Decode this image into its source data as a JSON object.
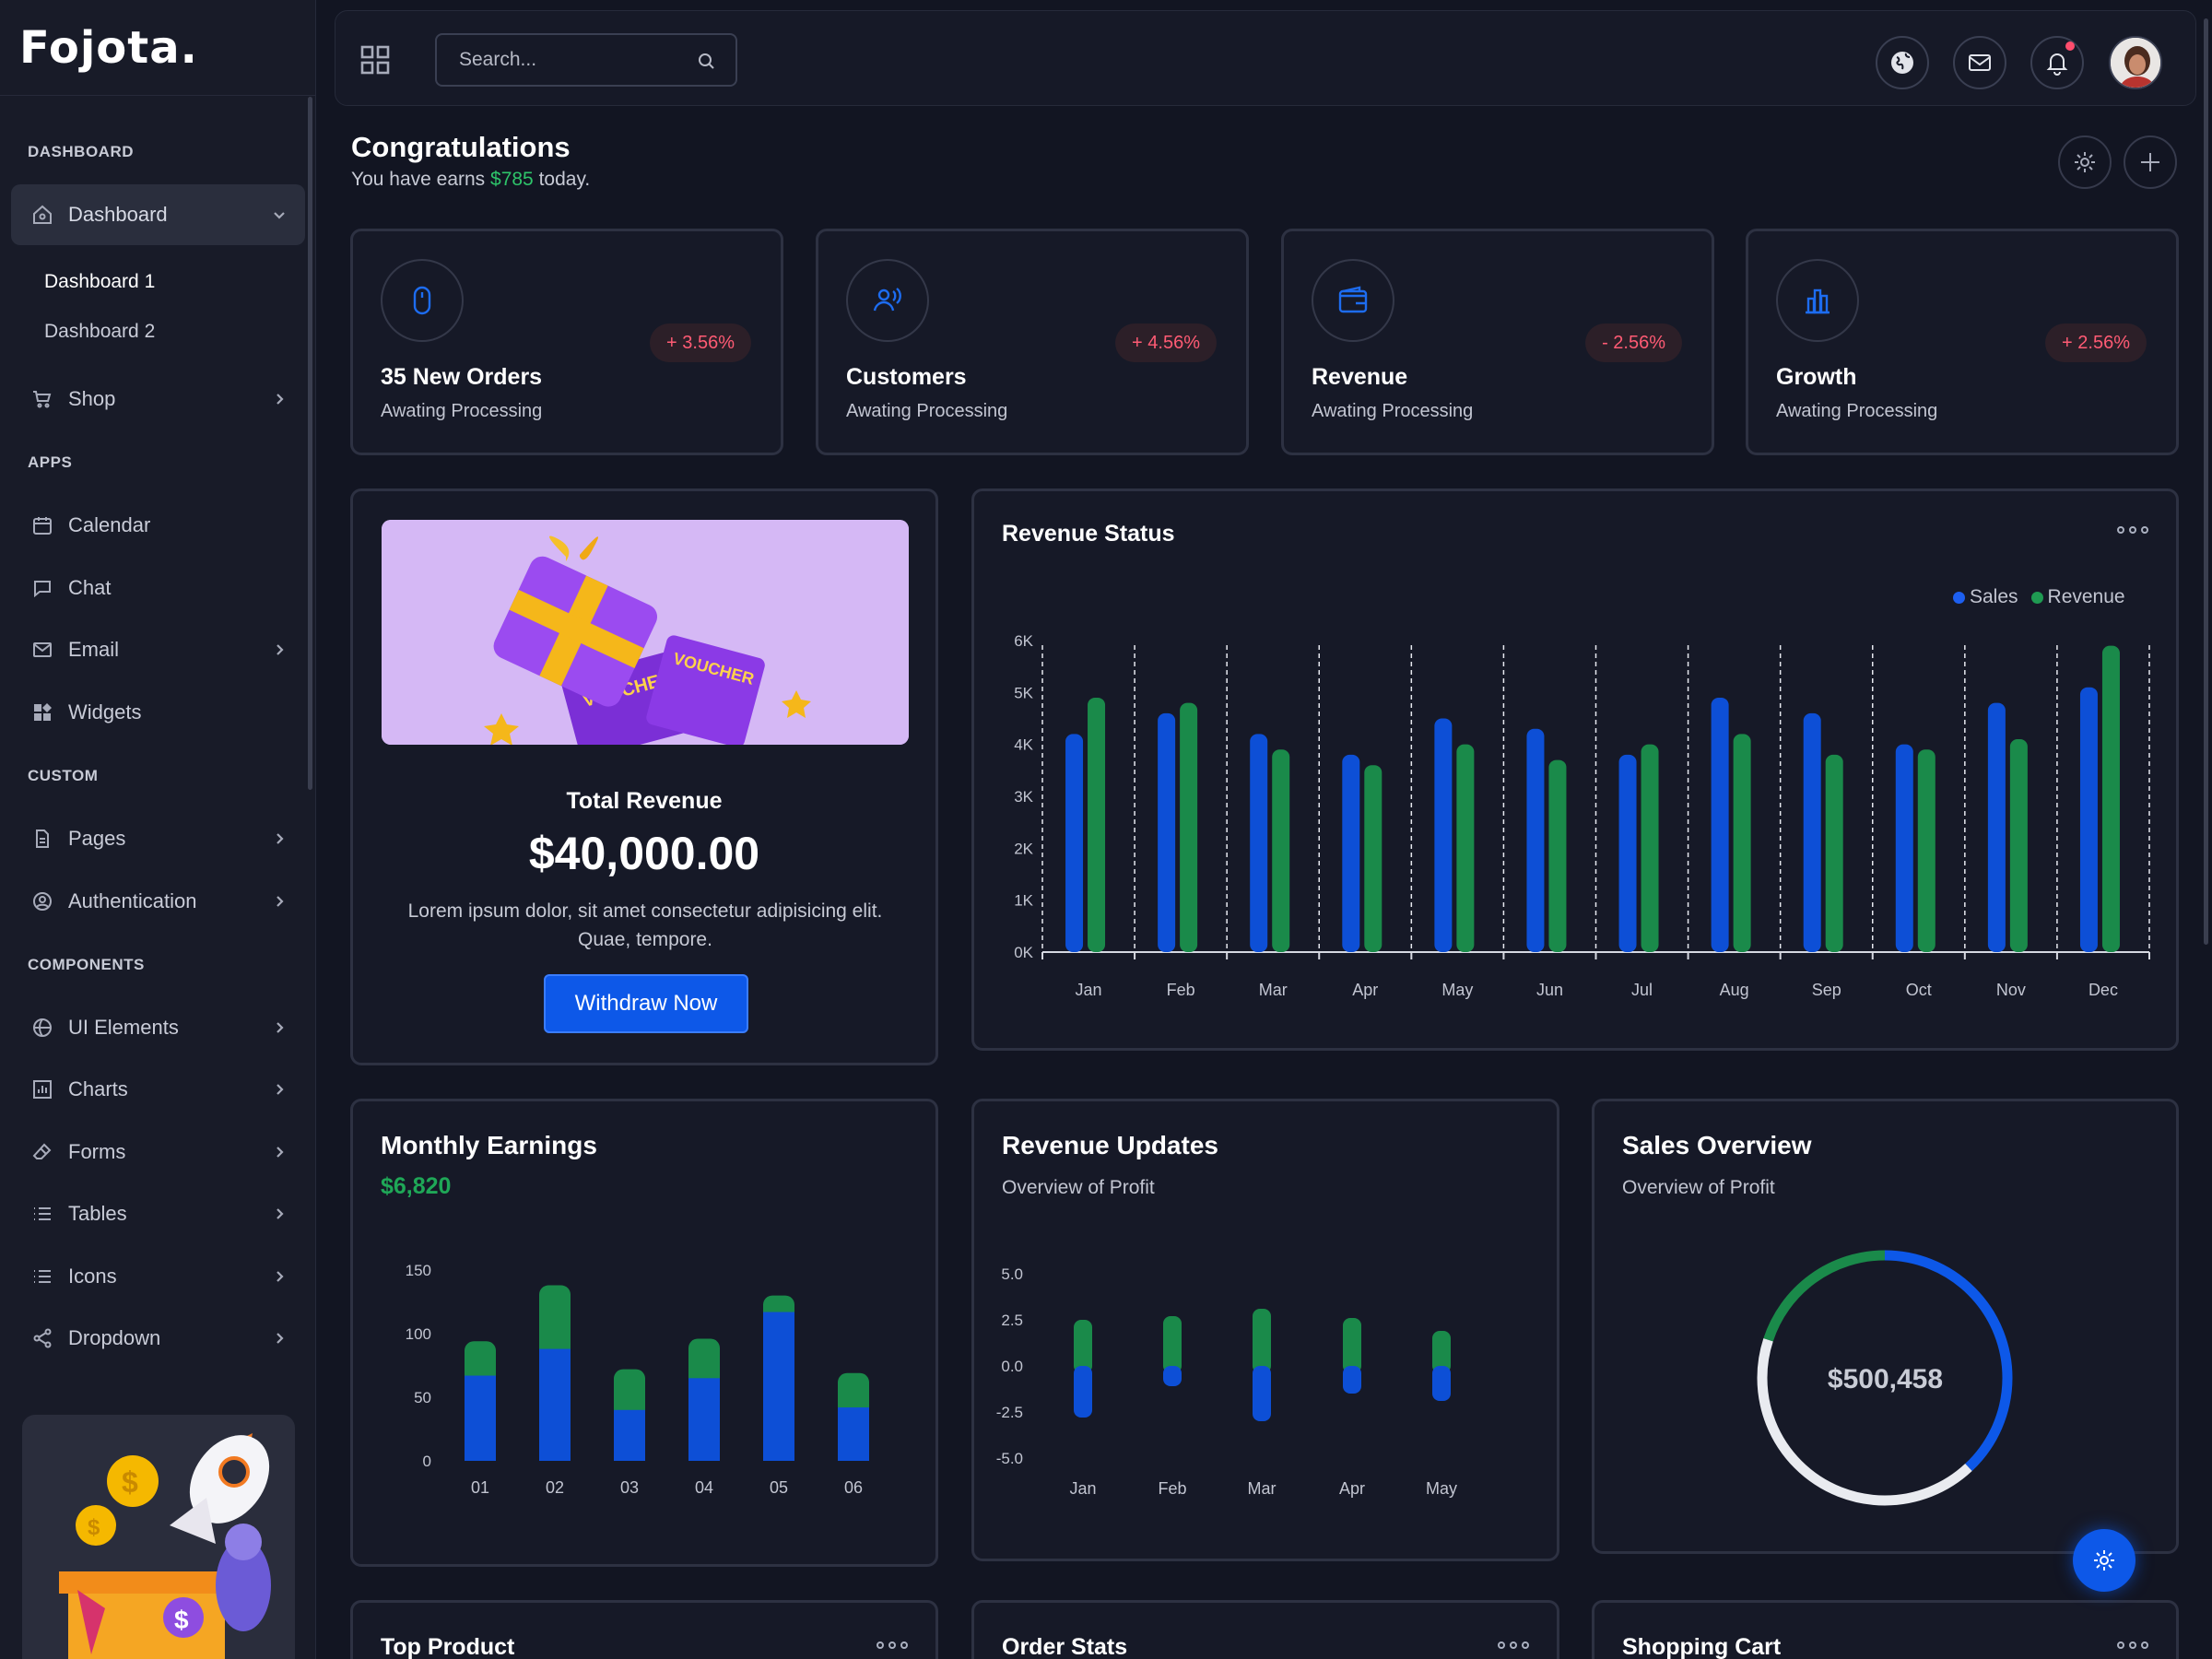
{
  "app": {
    "logo": "Fojota."
  },
  "sidebar": {
    "sections": [
      "DASHBOARD",
      "APPS",
      "CUSTOM",
      "COMPONENTS"
    ],
    "dashboard": {
      "label": "Dashboard",
      "subitems": [
        "Dashboard 1",
        "Dashboard 2"
      ]
    },
    "shop": "Shop",
    "apps": [
      "Calendar",
      "Chat",
      "Email",
      "Widgets"
    ],
    "custom": [
      "Pages",
      "Authentication"
    ],
    "components": [
      "UI Elements",
      "Charts",
      "Forms",
      "Tables",
      "Icons",
      "Dropdown"
    ]
  },
  "header": {
    "search_placeholder": "Search...",
    "icons": [
      "grid-icon",
      "search-icon",
      "globe-icon",
      "mail-icon",
      "bell-icon"
    ]
  },
  "page": {
    "title": "Congratulations",
    "sub_prefix": "You have earns ",
    "sub_amount": "$785",
    "sub_suffix": " today."
  },
  "stats": [
    {
      "title": "35 New Orders",
      "sub": "Awating Processing",
      "badge": "+ 3.56%",
      "icon": "mouse-icon"
    },
    {
      "title": "Customers",
      "sub": "Awating Processing",
      "badge": "+ 4.56%",
      "icon": "users-icon"
    },
    {
      "title": "Revenue",
      "sub": "Awating Processing",
      "badge": "- 2.56%",
      "icon": "wallet-icon"
    },
    {
      "title": "Growth",
      "sub": "Awating Processing",
      "badge": "+ 2.56%",
      "icon": "bar-chart-icon"
    }
  ],
  "total_revenue": {
    "label": "Total Revenue",
    "value": "$40,000.00",
    "desc": "Lorem ipsum dolor, sit amet consectetur adipisicing elit. Quae, tempore.",
    "button": "Withdraw Now",
    "image_text": [
      "VOUCHER",
      "VOUCHER"
    ]
  },
  "revenue_status": {
    "title": "Revenue Status"
  },
  "monthly_earnings": {
    "title": "Monthly Earnings",
    "amount": "$6,820"
  },
  "revenue_updates": {
    "title": "Revenue Updates",
    "sub": "Overview of Profit"
  },
  "sales_overview": {
    "title": "Sales Overview",
    "sub": "Overview of Profit",
    "center": "$500,458"
  },
  "bottom_cards": [
    "Top Product",
    "Order Stats",
    "Shopping Cart"
  ],
  "colors": {
    "blue": "#0d4fd6",
    "green": "#1a8a4a",
    "accent": "#0d58e8"
  },
  "chart_data": [
    {
      "type": "bar",
      "categories": [
        "Jan",
        "Feb",
        "Mar",
        "Apr",
        "May",
        "Jun",
        "Jul",
        "Aug",
        "Sep",
        "Oct",
        "Nov",
        "Dec"
      ],
      "series": [
        {
          "name": "Sales",
          "values": [
            4.2,
            4.6,
            4.2,
            3.8,
            4.5,
            4.3,
            3.8,
            4.9,
            4.6,
            4.0,
            4.8,
            5.1
          ]
        },
        {
          "name": "Revenue",
          "values": [
            4.9,
            4.8,
            3.9,
            3.6,
            4.0,
            3.7,
            4.0,
            4.2,
            3.8,
            3.9,
            4.1,
            5.9
          ]
        }
      ],
      "yticks": [
        "0K",
        "1K",
        "2K",
        "3K",
        "4K",
        "5K",
        "6K"
      ],
      "ylim": [
        0,
        6
      ],
      "legend": "top-right",
      "grid": "vertical dashed"
    },
    {
      "type": "bar",
      "stacked": true,
      "categories": [
        "01",
        "02",
        "03",
        "04",
        "05",
        "06"
      ],
      "series": [
        {
          "values": [
            67,
            88,
            40,
            65,
            117,
            42
          ]
        },
        {
          "values": [
            27,
            50,
            32,
            31,
            13,
            27
          ]
        }
      ],
      "yticks": [
        "0",
        "50",
        "100",
        "150"
      ],
      "ylim": [
        0,
        150
      ]
    },
    {
      "type": "bar",
      "stacked": true,
      "categories": [
        "Jan",
        "Feb",
        "Mar",
        "Apr",
        "May"
      ],
      "series": [
        {
          "values": [
            -2.8,
            -1.1,
            -3.0,
            -1.5,
            -1.9
          ]
        },
        {
          "values": [
            2.5,
            2.7,
            3.1,
            2.6,
            1.9
          ]
        }
      ],
      "yticks": [
        "5.0",
        "2.5",
        "0.0",
        "-2.5",
        "-5.0"
      ],
      "ylim": [
        -5,
        5
      ]
    },
    {
      "type": "pie",
      "donut": true,
      "slices": [
        {
          "color": "#0d58e8",
          "value": 38
        },
        {
          "color": "#e9ebf0",
          "value": 42
        },
        {
          "color": "#1a8a4a",
          "value": 20
        }
      ]
    }
  ]
}
